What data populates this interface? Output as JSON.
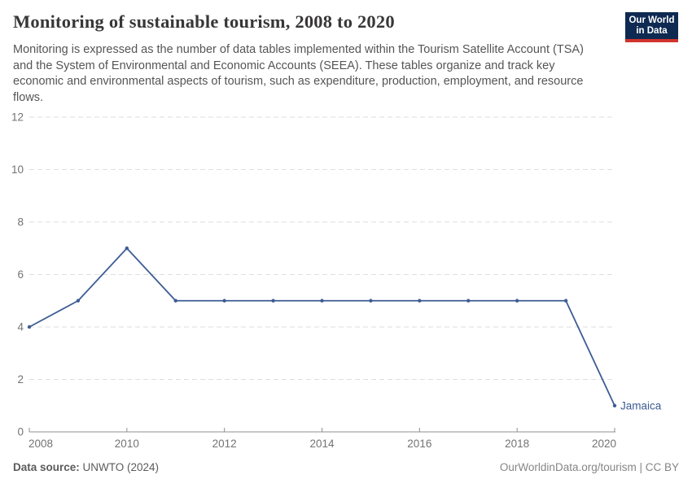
{
  "header": {
    "title": "Monitoring of sustainable tourism, 2008 to 2020",
    "subtitle_lines": [
      "Monitoring is expressed as the number of data tables implemented within the Tourism Satellite Account (TSA)",
      "and the System of Environmental and Economic Accounts (SEEA). These tables organize and track key",
      "economic and environmental aspects of tourism, such as expenditure, production, employment, and resource",
      "flows."
    ],
    "logo": {
      "line1": "Our World",
      "line2": "in Data"
    }
  },
  "chart_data": {
    "type": "line",
    "title": "Monitoring of sustainable tourism, 2008 to 2020",
    "x": [
      2008,
      2009,
      2010,
      2011,
      2012,
      2013,
      2014,
      2015,
      2016,
      2017,
      2018,
      2019,
      2020
    ],
    "series": [
      {
        "name": "Jamaica",
        "values": [
          4,
          5,
          7,
          5,
          5,
          5,
          5,
          5,
          5,
          5,
          5,
          5,
          1
        ],
        "color": "#3d5c94"
      }
    ],
    "xlabel": "",
    "ylabel": "",
    "xlim": [
      2008,
      2020
    ],
    "ylim": [
      0,
      12
    ],
    "xticks": [
      2008,
      2010,
      2012,
      2014,
      2016,
      2018,
      2020
    ],
    "yticks": [
      0,
      2,
      4,
      6,
      8,
      10,
      12
    ],
    "grid": "horizontal-dashed",
    "legend_position": "end-of-line-label"
  },
  "footer": {
    "datasource_label": "Data source:",
    "datasource_value": " UNWTO (2024)",
    "credit": "OurWorldinData.org/tourism | CC BY"
  },
  "colors": {
    "line": "#3d5c94",
    "grid": "#dedede",
    "axis": "#8f8f8f",
    "tick_label": "#737373",
    "logo_bg": "#0e2a52",
    "logo_accent": "#d0342c"
  }
}
